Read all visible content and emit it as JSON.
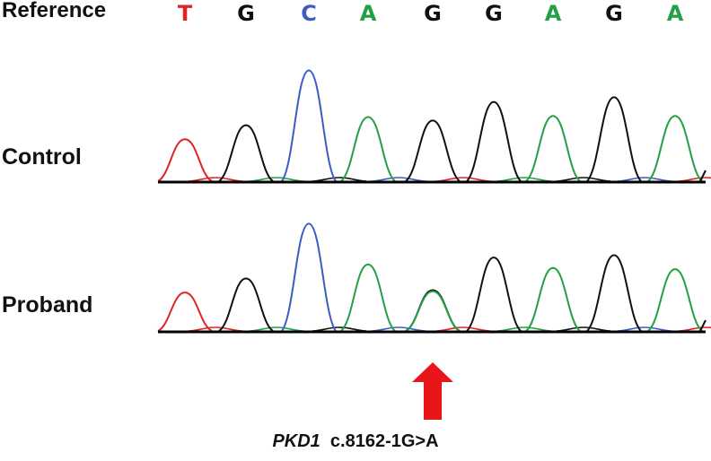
{
  "labels": {
    "reference": "Reference",
    "control": "Control",
    "proband": "Proband"
  },
  "reference_bases": [
    "T",
    "G",
    "C",
    "A",
    "G",
    "G",
    "A",
    "G",
    "A"
  ],
  "base_colors": {
    "T": "#e02424",
    "G": "#111111",
    "C": "#3b5cc4",
    "A": "#21a045"
  },
  "traces": {
    "control": {
      "peak_heights": [
        0.36,
        0.48,
        0.95,
        0.55,
        0.52,
        0.68,
        0.56,
        0.72,
        0.56
      ]
    },
    "proband": {
      "peak_heights": [
        0.33,
        0.45,
        0.92,
        0.57,
        0.35,
        0.63,
        0.54,
        0.65,
        0.53
      ],
      "secondary": [
        {
          "position": 5,
          "base": "A",
          "height": 0.34
        }
      ]
    }
  },
  "annotation": {
    "marker_position": 5,
    "arrow_color": "#e8151b",
    "gene": "PKD1",
    "variant": "c.8162-1G>A"
  }
}
